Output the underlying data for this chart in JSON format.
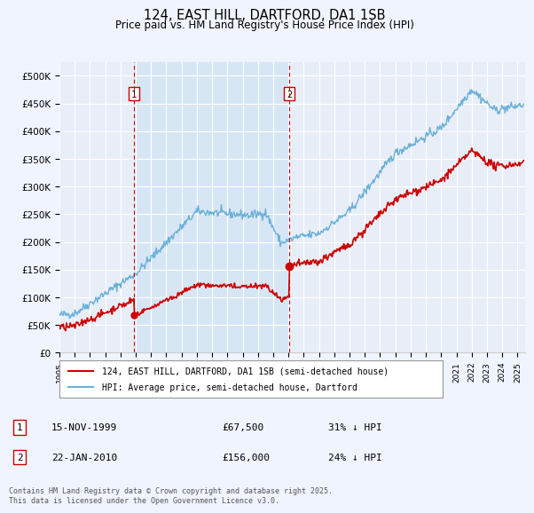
{
  "title_line1": "124, EAST HILL, DARTFORD, DA1 1SB",
  "title_line2": "Price paid vs. HM Land Registry's House Price Index (HPI)",
  "ylim": [
    0,
    525000
  ],
  "yticks": [
    0,
    50000,
    100000,
    150000,
    200000,
    250000,
    300000,
    350000,
    400000,
    450000,
    500000
  ],
  "ytick_labels": [
    "£0",
    "£50K",
    "£100K",
    "£150K",
    "£200K",
    "£250K",
    "£300K",
    "£350K",
    "£400K",
    "£450K",
    "£500K"
  ],
  "background_color": "#f0f4ff",
  "plot_bg_color": "#e8eef8",
  "grid_color": "#ffffff",
  "hpi_color": "#6ab0d8",
  "price_color": "#cc0000",
  "vline_color": "#cc0000",
  "shade_color": "#d0e4f5",
  "marker1_year": 1999.88,
  "marker1_price": 67500,
  "marker2_year": 2010.05,
  "marker2_price": 156000,
  "legend_label_price": "124, EAST HILL, DARTFORD, DA1 1SB (semi-detached house)",
  "legend_label_hpi": "HPI: Average price, semi-detached house, Dartford",
  "annotation1_label": "1",
  "annotation2_label": "2",
  "table_row1": [
    "1",
    "15-NOV-1999",
    "£67,500",
    "31% ↓ HPI"
  ],
  "table_row2": [
    "2",
    "22-JAN-2010",
    "£156,000",
    "24% ↓ HPI"
  ],
  "footnote": "Contains HM Land Registry data © Crown copyright and database right 2025.\nThis data is licensed under the Open Government Licence v3.0.",
  "xmin": 1995,
  "xmax": 2025.5
}
